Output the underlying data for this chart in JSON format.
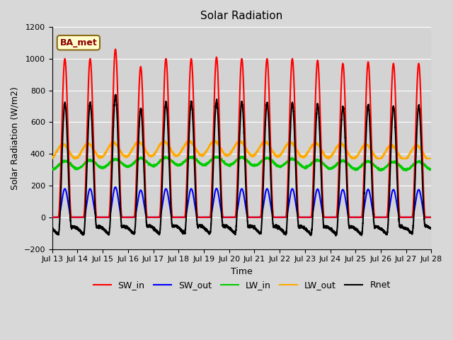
{
  "title": "Solar Radiation",
  "xlabel": "Time",
  "ylabel": "Solar Radiation (W/m2)",
  "ylim": [
    -200,
    1200
  ],
  "xlim_start": 0,
  "xlim_end": 15,
  "x_tick_labels": [
    "Jul 13",
    "Jul 14",
    "Jul 15",
    "Jul 16",
    "Jul 17",
    "Jul 18",
    "Jul 19",
    "Jul 20",
    "Jul 21",
    "Jul 22",
    "Jul 23",
    "Jul 24",
    "Jul 25",
    "Jul 26",
    "Jul 27",
    "Jul 28"
  ],
  "x_tick_positions": [
    0,
    1,
    2,
    3,
    4,
    5,
    6,
    7,
    8,
    9,
    10,
    11,
    12,
    13,
    14,
    15
  ],
  "yticks": [
    -200,
    0,
    200,
    400,
    600,
    800,
    1000,
    1200
  ],
  "colors": {
    "SW_in": "#ff0000",
    "SW_out": "#0000ff",
    "LW_in": "#00cc00",
    "LW_out": "#ffaa00",
    "Rnet": "#000000"
  },
  "legend_label": "BA_met",
  "fig_bg_color": "#d8d8d8",
  "plot_bg_color": "#d3d3d3",
  "grid_color": "#ffffff",
  "n_days": 15
}
